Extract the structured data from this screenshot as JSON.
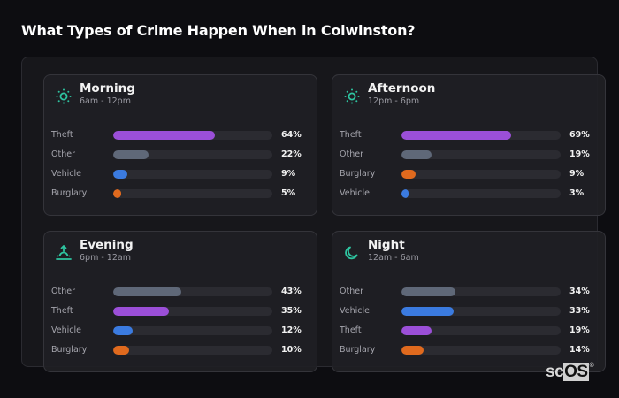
{
  "title": "What Types of Crime Happen When in Colwinston?",
  "colors": {
    "Theft": "#9b4fd8",
    "Other": "#5f6878",
    "Vehicle": "#3b7be0",
    "Burglary": "#e06a1e",
    "icon": "#2ec4a0"
  },
  "chart_data": {
    "type": "bar",
    "title": "What Types of Crime Happen When in Colwinston?",
    "xlabel": "",
    "ylabel": "",
    "unit": "%",
    "panels": [
      {
        "name": "Morning",
        "range": "6am - 12pm",
        "icon": "sun-icon",
        "categories": [
          "Theft",
          "Other",
          "Vehicle",
          "Burglary"
        ],
        "values": [
          64,
          22,
          9,
          5
        ]
      },
      {
        "name": "Afternoon",
        "range": "12pm - 6pm",
        "icon": "sun-icon",
        "categories": [
          "Theft",
          "Other",
          "Burglary",
          "Vehicle"
        ],
        "values": [
          69,
          19,
          9,
          3
        ]
      },
      {
        "name": "Evening",
        "range": "6pm - 12am",
        "icon": "sunset-icon",
        "categories": [
          "Other",
          "Theft",
          "Vehicle",
          "Burglary"
        ],
        "values": [
          43,
          35,
          12,
          10
        ]
      },
      {
        "name": "Night",
        "range": "12am - 6am",
        "icon": "moon-icon",
        "categories": [
          "Other",
          "Vehicle",
          "Theft",
          "Burglary"
        ],
        "values": [
          34,
          33,
          19,
          14
        ]
      }
    ]
  },
  "cards": [
    {
      "name": "Morning",
      "range": "6am - 12pm",
      "rows": [
        {
          "label": "Theft",
          "pct": "64%"
        },
        {
          "label": "Other",
          "pct": "22%"
        },
        {
          "label": "Vehicle",
          "pct": "9%"
        },
        {
          "label": "Burglary",
          "pct": "5%"
        }
      ]
    },
    {
      "name": "Afternoon",
      "range": "12pm - 6pm",
      "rows": [
        {
          "label": "Theft",
          "pct": "69%"
        },
        {
          "label": "Other",
          "pct": "19%"
        },
        {
          "label": "Burglary",
          "pct": "9%"
        },
        {
          "label": "Vehicle",
          "pct": "3%"
        }
      ]
    },
    {
      "name": "Evening",
      "range": "6pm - 12am",
      "rows": [
        {
          "label": "Other",
          "pct": "43%"
        },
        {
          "label": "Theft",
          "pct": "35%"
        },
        {
          "label": "Vehicle",
          "pct": "12%"
        },
        {
          "label": "Burglary",
          "pct": "10%"
        }
      ]
    },
    {
      "name": "Night",
      "range": "12am - 6am",
      "rows": [
        {
          "label": "Other",
          "pct": "34%"
        },
        {
          "label": "Vehicle",
          "pct": "33%"
        },
        {
          "label": "Theft",
          "pct": "19%"
        },
        {
          "label": "Burglary",
          "pct": "14%"
        }
      ]
    }
  ],
  "logo": {
    "sc": "sc",
    "os": "OS",
    "reg": "®"
  }
}
